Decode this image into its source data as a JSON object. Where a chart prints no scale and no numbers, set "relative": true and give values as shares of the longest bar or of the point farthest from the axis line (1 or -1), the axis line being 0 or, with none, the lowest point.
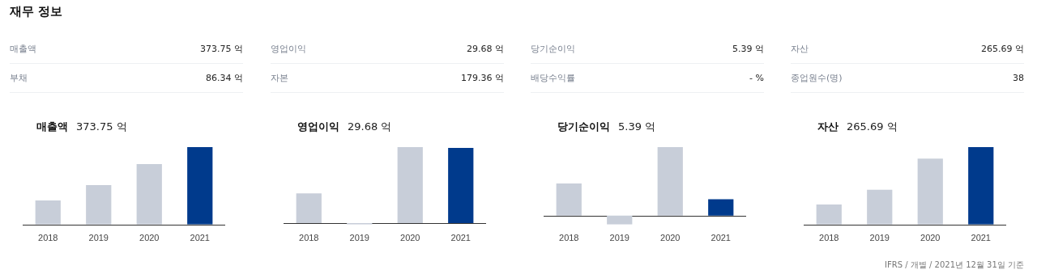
{
  "chart_data": [
    {
      "type": "other",
      "title": "재무 정보",
      "annotations": [
        "매출액",
        "373.75 억",
        "영업이익",
        "29.68 억",
        "당기순이익",
        "5.39 억",
        "자산",
        "265.69 억",
        "부채",
        "86.34 억",
        "자본",
        "179.36 억",
        "배당수익률",
        "- %",
        "종업원수(명)",
        "38"
      ]
    },
    {
      "type": "bar",
      "title": "매출액",
      "subtitle": "373.75 억",
      "categories": [
        "2018",
        "2019",
        "2020",
        "2021"
      ],
      "values": [
        0.31,
        0.51,
        0.78,
        1
      ],
      "colors": [
        "#c8ced9",
        "#c8ced9",
        "#c8ced9",
        "#003a8c"
      ],
      "relative": true,
      "tick_labels": "x"
    },
    {
      "type": "bar",
      "title": "영업이익",
      "subtitle": "29.68 억",
      "categories": [
        "2018",
        "2019",
        "2020",
        "2021"
      ],
      "values": [
        0.39,
        -0.02,
        1,
        0.99
      ],
      "colors": [
        "#c8ced9",
        "#c8ced9",
        "#c8ced9",
        "#003a8c"
      ],
      "relative": true,
      "tick_labels": "x"
    },
    {
      "type": "bar",
      "title": "당기순이익",
      "subtitle": "5.39 억",
      "categories": [
        "2018",
        "2019",
        "2020",
        "2021"
      ],
      "values": [
        0.47,
        -0.13,
        1,
        0.24
      ],
      "colors": [
        "#c8ced9",
        "#c8ced9",
        "#c8ced9",
        "#003a8c"
      ],
      "relative": true,
      "tick_labels": "x"
    },
    {
      "type": "bar",
      "title": "자산",
      "subtitle": "265.69 억",
      "categories": [
        "2018",
        "2019",
        "2020",
        "2021"
      ],
      "values": [
        0.26,
        0.45,
        0.85,
        1
      ],
      "colors": [
        "#c8ced9",
        "#c8ced9",
        "#c8ced9",
        "#003a8c"
      ],
      "relative": true,
      "tick_labels": "x",
      "annotations": [
        "IFRS / 개별 / 2021년 12월 31일 기준"
      ]
    }
  ]
}
